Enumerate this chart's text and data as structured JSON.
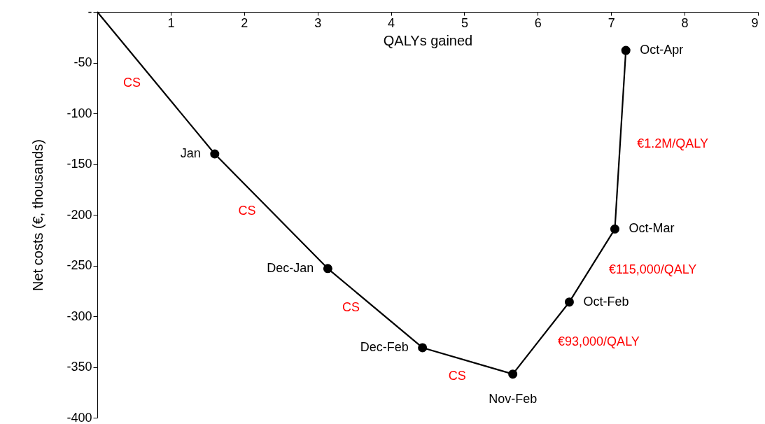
{
  "chart_data": {
    "type": "line",
    "xlabel": "QALYs gained",
    "ylabel": "Net costs (€, thousands)",
    "xlim": [
      0,
      9
    ],
    "xticks": [
      1,
      2,
      3,
      4,
      5,
      6,
      7,
      8,
      9
    ],
    "ylim": [
      -400,
      0
    ],
    "yticks": [
      {
        "value": 0,
        "label": "-"
      },
      -50,
      -100,
      -150,
      -200,
      -250,
      -300,
      -350,
      -400
    ],
    "grid": false,
    "series": [
      {
        "color": "#000000",
        "marker": "none",
        "x": [
          0,
          1.6,
          3.14,
          4.43,
          5.66,
          6.43,
          7.05,
          7.2
        ],
        "values": [
          0,
          -140,
          -253,
          -331,
          -357,
          -286,
          -214,
          -38
        ]
      },
      {
        "type": "scatter",
        "color": "#000000",
        "marker": "circle",
        "x": [
          1.6,
          3.14,
          4.43,
          5.66,
          6.43,
          7.05,
          7.2
        ],
        "values": [
          -140,
          -253,
          -331,
          -357,
          -286,
          -214,
          -38
        ],
        "value_labels": [
          "Jan",
          "Dec-Jan",
          "Dec-Feb",
          "Nov-Feb",
          "Oct-Feb",
          "Oct-Mar",
          "Oct-Apr"
        ]
      }
    ],
    "annotations": [
      "CS",
      "CS",
      "CS",
      "CS",
      "€93,000/QALY",
      "€115,000/QALY",
      "€1.2M/QALY"
    ]
  }
}
